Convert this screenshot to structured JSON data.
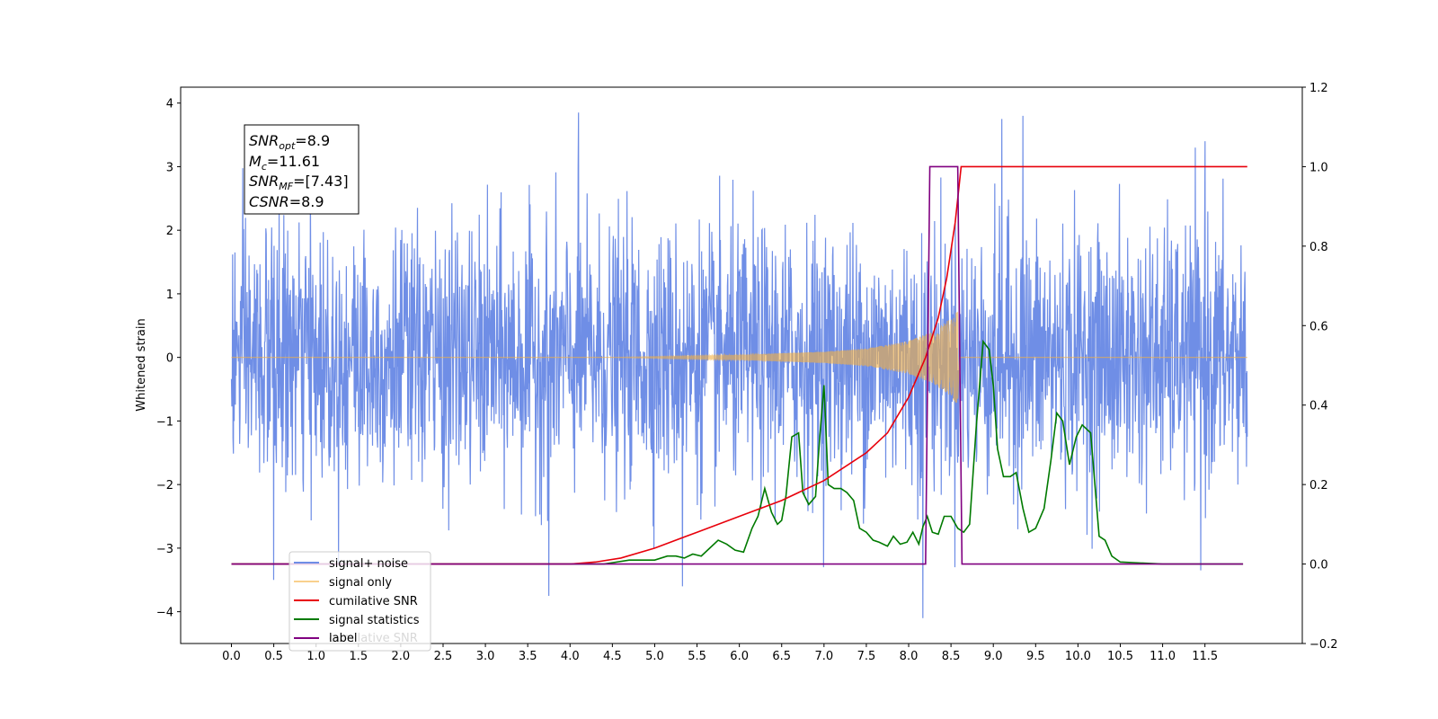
{
  "chart_data": {
    "type": "line",
    "title": "",
    "xlabel": "",
    "ylabel": "Whitened strain",
    "xlim": [
      -0.6,
      12.65
    ],
    "ylim": [
      -4.5,
      4.25
    ],
    "y2lim": [
      -0.2,
      1.2
    ],
    "x_ticks": [
      "0.0",
      "0.5",
      "1.0",
      "1.5",
      "2.0",
      "2.5",
      "3.0",
      "3.5",
      "4.0",
      "4.5",
      "5.0",
      "5.5",
      "6.0",
      "6.5",
      "7.0",
      "7.5",
      "8.0",
      "8.5",
      "9.0",
      "9.5",
      "10.0",
      "10.5",
      "11.0",
      "11.5"
    ],
    "y_ticks": [
      "4",
      "3",
      "2",
      "1",
      "0",
      "−1",
      "−2",
      "−3",
      "−4"
    ],
    "y2_ticks": [
      "1.2",
      "1.0",
      "0.8",
      "0.6",
      "0.4",
      "0.2",
      "0.0",
      "−0.2"
    ],
    "grid": false,
    "legend_position": "lower-left",
    "annotation": {
      "lines": [
        {
          "base": "SNR",
          "sub": "opt",
          "value": "=8.9"
        },
        {
          "base": "M",
          "sub": "c",
          "value": "=11.61"
        },
        {
          "base": "SNR",
          "sub": "MF",
          "value": "=[7.43]"
        },
        {
          "base": "CSNR",
          "sub": "",
          "value": "=8.9"
        }
      ]
    },
    "legend": [
      {
        "name": "signal+ noise",
        "color": "#6f8ee6"
      },
      {
        "name": "signal only",
        "color": "#f5b041"
      },
      {
        "name": "cumilative SNR",
        "color": "#e8000b"
      },
      {
        "name": "signal statistics",
        "color": "#007a00"
      },
      {
        "name": "label",
        "color": "#800080"
      }
    ],
    "legend_overlap_text": "cumilative SNR",
    "series": [
      {
        "name": "signal+ noise",
        "axis": "left",
        "description": "whitened noise, approx gaussian, sd ~1.0, 0.0 to 12.0 s",
        "noise_sd": 1.0,
        "x_range": [
          0.0,
          12.0
        ],
        "extremes": [
          {
            "x": 0.5,
            "y": -3.5
          },
          {
            "x": 3.75,
            "y": -3.75
          },
          {
            "x": 4.1,
            "y": 3.85
          },
          {
            "x": 5.33,
            "y": -3.6
          },
          {
            "x": 8.17,
            "y": -4.1
          },
          {
            "x": 9.35,
            "y": 3.8
          },
          {
            "x": 9.1,
            "y": 3.75
          },
          {
            "x": 11.45,
            "y": -3.35
          },
          {
            "x": 11.5,
            "y": 3.4
          }
        ]
      },
      {
        "name": "signal only",
        "axis": "left",
        "chirp_start": 4.5,
        "chirp_end": 8.58,
        "envelope": [
          {
            "x": 4.5,
            "y": 0.0
          },
          {
            "x": 6.0,
            "y": 0.04
          },
          {
            "x": 7.0,
            "y": 0.09
          },
          {
            "x": 7.5,
            "y": 0.14
          },
          {
            "x": 8.0,
            "y": 0.26
          },
          {
            "x": 8.3,
            "y": 0.42
          },
          {
            "x": 8.5,
            "y": 0.62
          },
          {
            "x": 8.58,
            "y": 0.75
          }
        ]
      },
      {
        "name": "cumilative SNR",
        "axis": "right",
        "x": [
          0.0,
          3.0,
          4.0,
          4.3,
          4.6,
          5.0,
          5.5,
          6.0,
          6.5,
          7.0,
          7.5,
          7.75,
          8.0,
          8.2,
          8.35,
          8.45,
          8.55,
          8.62,
          8.63,
          12.0
        ],
        "values": [
          0.0,
          0.0,
          0.0,
          0.005,
          0.015,
          0.04,
          0.08,
          0.12,
          0.16,
          0.21,
          0.28,
          0.33,
          0.42,
          0.52,
          0.62,
          0.72,
          0.86,
          1.0,
          1.0,
          1.0
        ]
      },
      {
        "name": "signal statistics",
        "axis": "right",
        "x": [
          0.0,
          2.8,
          4.4,
          4.55,
          4.7,
          5.0,
          5.15,
          5.25,
          5.35,
          5.45,
          5.55,
          5.65,
          5.75,
          5.85,
          5.95,
          6.05,
          6.15,
          6.22,
          6.3,
          6.38,
          6.45,
          6.5,
          6.55,
          6.62,
          6.7,
          6.75,
          6.82,
          6.9,
          6.95,
          7.0,
          7.05,
          7.12,
          7.2,
          7.27,
          7.35,
          7.42,
          7.5,
          7.58,
          7.65,
          7.75,
          7.82,
          7.9,
          7.98,
          8.05,
          8.12,
          8.17,
          8.22,
          8.28,
          8.35,
          8.42,
          8.5,
          8.58,
          8.65,
          8.72,
          8.8,
          8.88,
          8.95,
          9.0,
          9.05,
          9.12,
          9.2,
          9.27,
          9.35,
          9.42,
          9.5,
          9.6,
          9.68,
          9.75,
          9.82,
          9.9,
          9.98,
          10.05,
          10.15,
          10.25,
          10.32,
          10.4,
          10.5,
          11.0,
          11.95
        ],
        "values": [
          0.0,
          0.0,
          0.0,
          0.005,
          0.01,
          0.01,
          0.02,
          0.02,
          0.015,
          0.025,
          0.02,
          0.04,
          0.06,
          0.05,
          0.035,
          0.03,
          0.09,
          0.12,
          0.19,
          0.13,
          0.1,
          0.11,
          0.17,
          0.32,
          0.33,
          0.18,
          0.15,
          0.17,
          0.32,
          0.45,
          0.2,
          0.19,
          0.19,
          0.18,
          0.16,
          0.09,
          0.08,
          0.06,
          0.055,
          0.045,
          0.07,
          0.05,
          0.055,
          0.08,
          0.05,
          0.095,
          0.12,
          0.08,
          0.075,
          0.12,
          0.12,
          0.09,
          0.08,
          0.1,
          0.35,
          0.56,
          0.54,
          0.45,
          0.29,
          0.22,
          0.22,
          0.23,
          0.14,
          0.08,
          0.09,
          0.14,
          0.26,
          0.38,
          0.36,
          0.25,
          0.32,
          0.35,
          0.33,
          0.07,
          0.06,
          0.02,
          0.005,
          0.0,
          0.0
        ]
      },
      {
        "name": "label",
        "axis": "right",
        "x": [
          0.0,
          8.2,
          8.25,
          8.58,
          8.63,
          11.95
        ],
        "values": [
          0.0,
          0.0,
          1.0,
          1.0,
          0.0,
          0.0
        ]
      }
    ]
  }
}
